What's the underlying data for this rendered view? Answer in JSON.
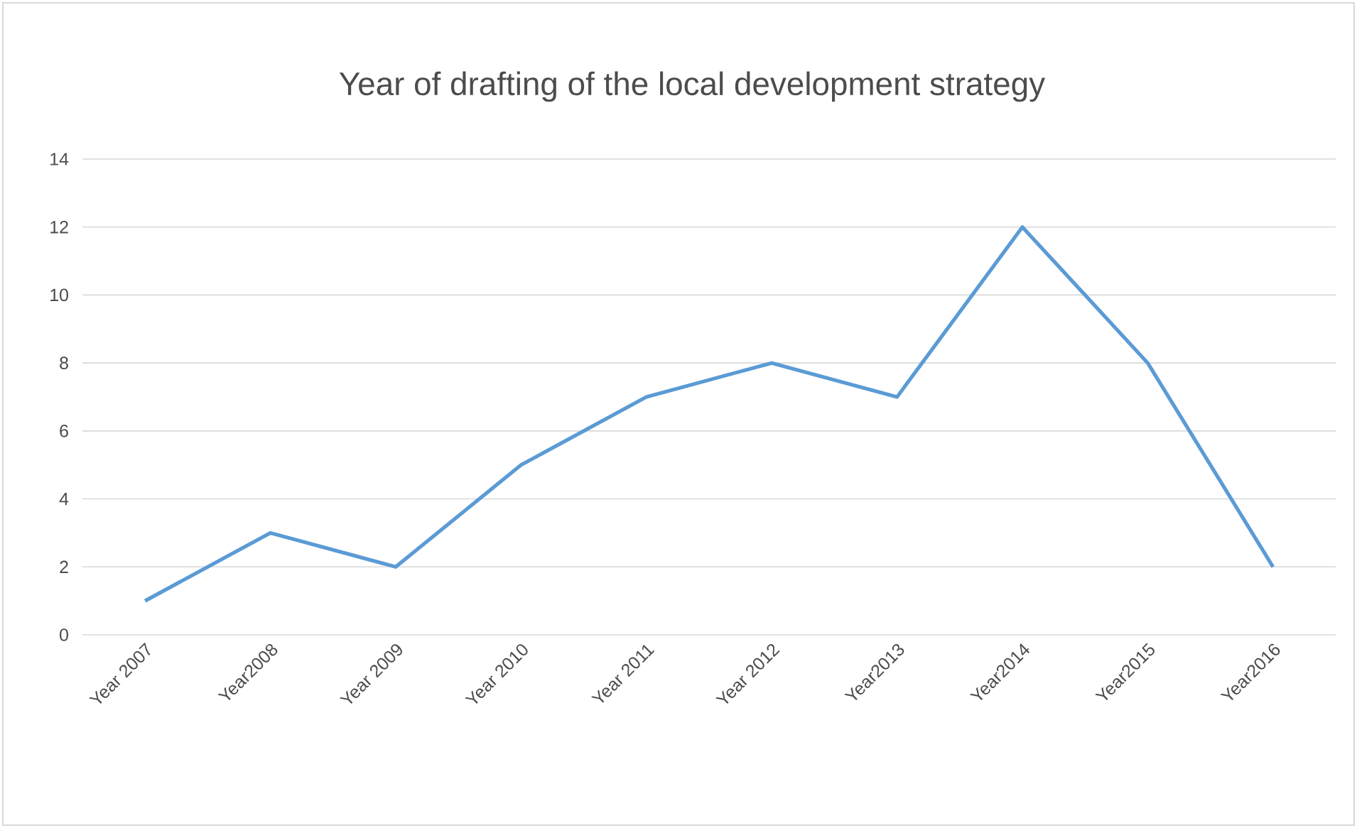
{
  "chart_data": {
    "type": "line",
    "title": "Year of drafting of the local development strategy",
    "categories": [
      "Year 2007",
      "Year2008",
      "Year 2009",
      "Year 2010",
      "Year 2011",
      "Year 2012",
      "Year2013",
      "Year2014",
      "Year2015",
      "Year2016"
    ],
    "series": [
      {
        "color": "#5b9bd5",
        "values": [
          1,
          3,
          2,
          5,
          7,
          8,
          7,
          12,
          8,
          2
        ]
      }
    ],
    "ylim": [
      0,
      14
    ],
    "yticks": [
      0,
      2,
      4,
      6,
      8,
      10,
      12,
      14
    ],
    "grid": "y"
  }
}
